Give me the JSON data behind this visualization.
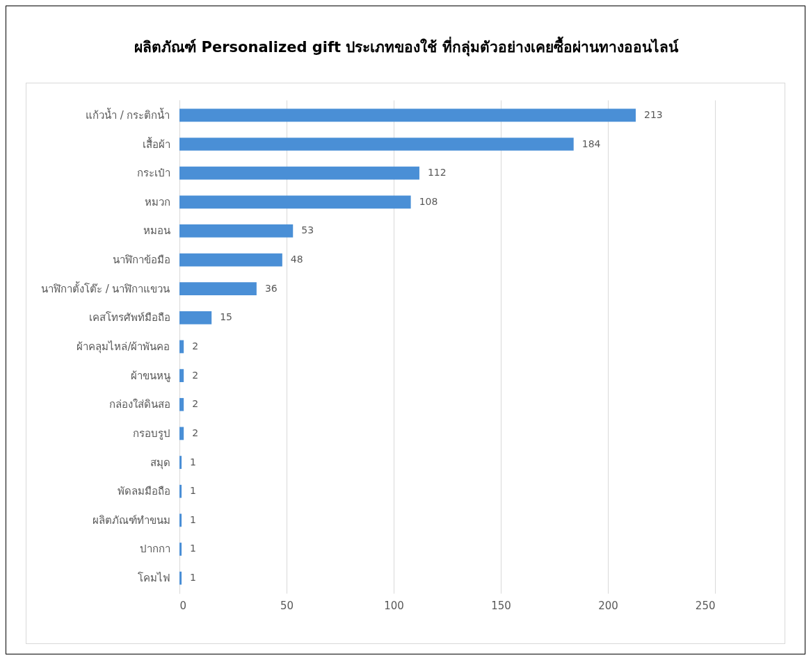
{
  "chart_data": {
    "type": "bar",
    "orientation": "horizontal",
    "title": "ผลิตภัณฑ์ Personalized gift ประเภทของใช้ ที่กลุ่มตัวอย่างเคยซื้อผ่านทางออนไลน์",
    "categories": [
      "แก้วน้ำ / กระติกน้ำ",
      "เสื้อผ้า",
      "กระเป๋า",
      "หมวก",
      "หมอน",
      "นาฬิกาข้อมือ",
      "นาฬิกาตั้งโต๊ะ / นาฬิกาแขวน",
      "เคสโทรศัพท์มือถือ",
      "ผ้าคลุมไหล่/ผ้าพันคอ",
      "ผ้าขนหนู",
      "กล่องใส่ดินสอ",
      "กรอบรูป",
      "สมุด",
      "พัดลมมือถือ",
      "ผลิตภัณฑ์ทำขนม",
      "ปากกา",
      "โคมไฟ"
    ],
    "values": [
      213,
      184,
      112,
      108,
      53,
      48,
      36,
      15,
      2,
      2,
      2,
      2,
      1,
      1,
      1,
      1,
      1
    ],
    "color": "#4a8fd6",
    "xlim": [
      0,
      250
    ],
    "xticks": [
      0,
      50,
      100,
      150,
      200,
      250
    ],
    "grid": "x",
    "data_labels": true
  }
}
